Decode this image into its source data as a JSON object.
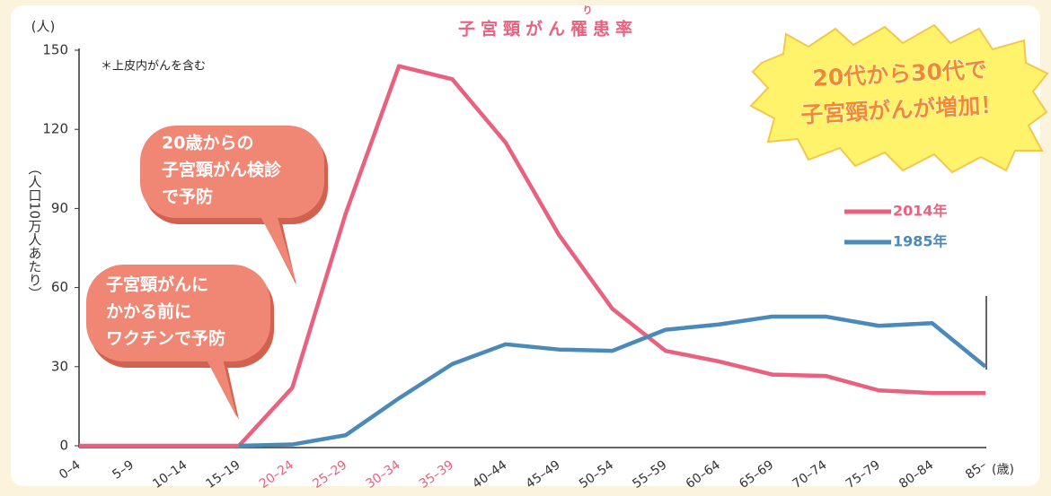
{
  "chart_data": {
    "type": "line",
    "title": "子宮頸がん罹患率",
    "title_ruby": "り",
    "y_unit": "(人)",
    "y_label": "（人口10万人あたり）",
    "x_unit": "(歳)",
    "note": "＊上皮内がんを含む",
    "categories": [
      "0–4",
      "5–9",
      "10–14",
      "15–19",
      "20–24",
      "25–29",
      "30–34",
      "35–39",
      "40–44",
      "45–49",
      "50–54",
      "55–59",
      "60–64",
      "65–69",
      "70–74",
      "75–79",
      "80–84",
      "85–"
    ],
    "category_colors": [
      "#333333",
      "#333333",
      "#333333",
      "#333333",
      "#e8617f",
      "#e8617f",
      "#e8617f",
      "#e8617f",
      "#333333",
      "#333333",
      "#333333",
      "#333333",
      "#333333",
      "#333333",
      "#333333",
      "#333333",
      "#333333",
      "#333333"
    ],
    "series": [
      {
        "name": "2014年",
        "color": "#e8617f",
        "values": [
          0,
          0,
          0,
          0,
          22,
          88,
          144,
          139,
          115,
          80,
          52,
          36,
          32,
          27,
          26.5,
          21,
          20,
          20
        ]
      },
      {
        "name": "1985年",
        "color": "#4a8ab8",
        "values": [
          null,
          null,
          null,
          0,
          0.5,
          4,
          18,
          31,
          38.5,
          36.5,
          36,
          44,
          46,
          49,
          49,
          45.5,
          46.5,
          30
        ]
      }
    ],
    "ylim": [
      0,
      150
    ],
    "yticks": [
      0,
      30,
      60,
      90,
      120,
      150
    ],
    "grid": false,
    "bubbles": [
      {
        "lines": [
          "20歳からの",
          "子宮頸がん検診",
          "で予防"
        ]
      },
      {
        "lines": [
          "子宮頸がんに",
          "かかる前に",
          "ワクチンで予防"
        ]
      }
    ],
    "callout": {
      "lines": [
        "20代から30代で",
        "子宮頸がんが増加！"
      ]
    }
  }
}
